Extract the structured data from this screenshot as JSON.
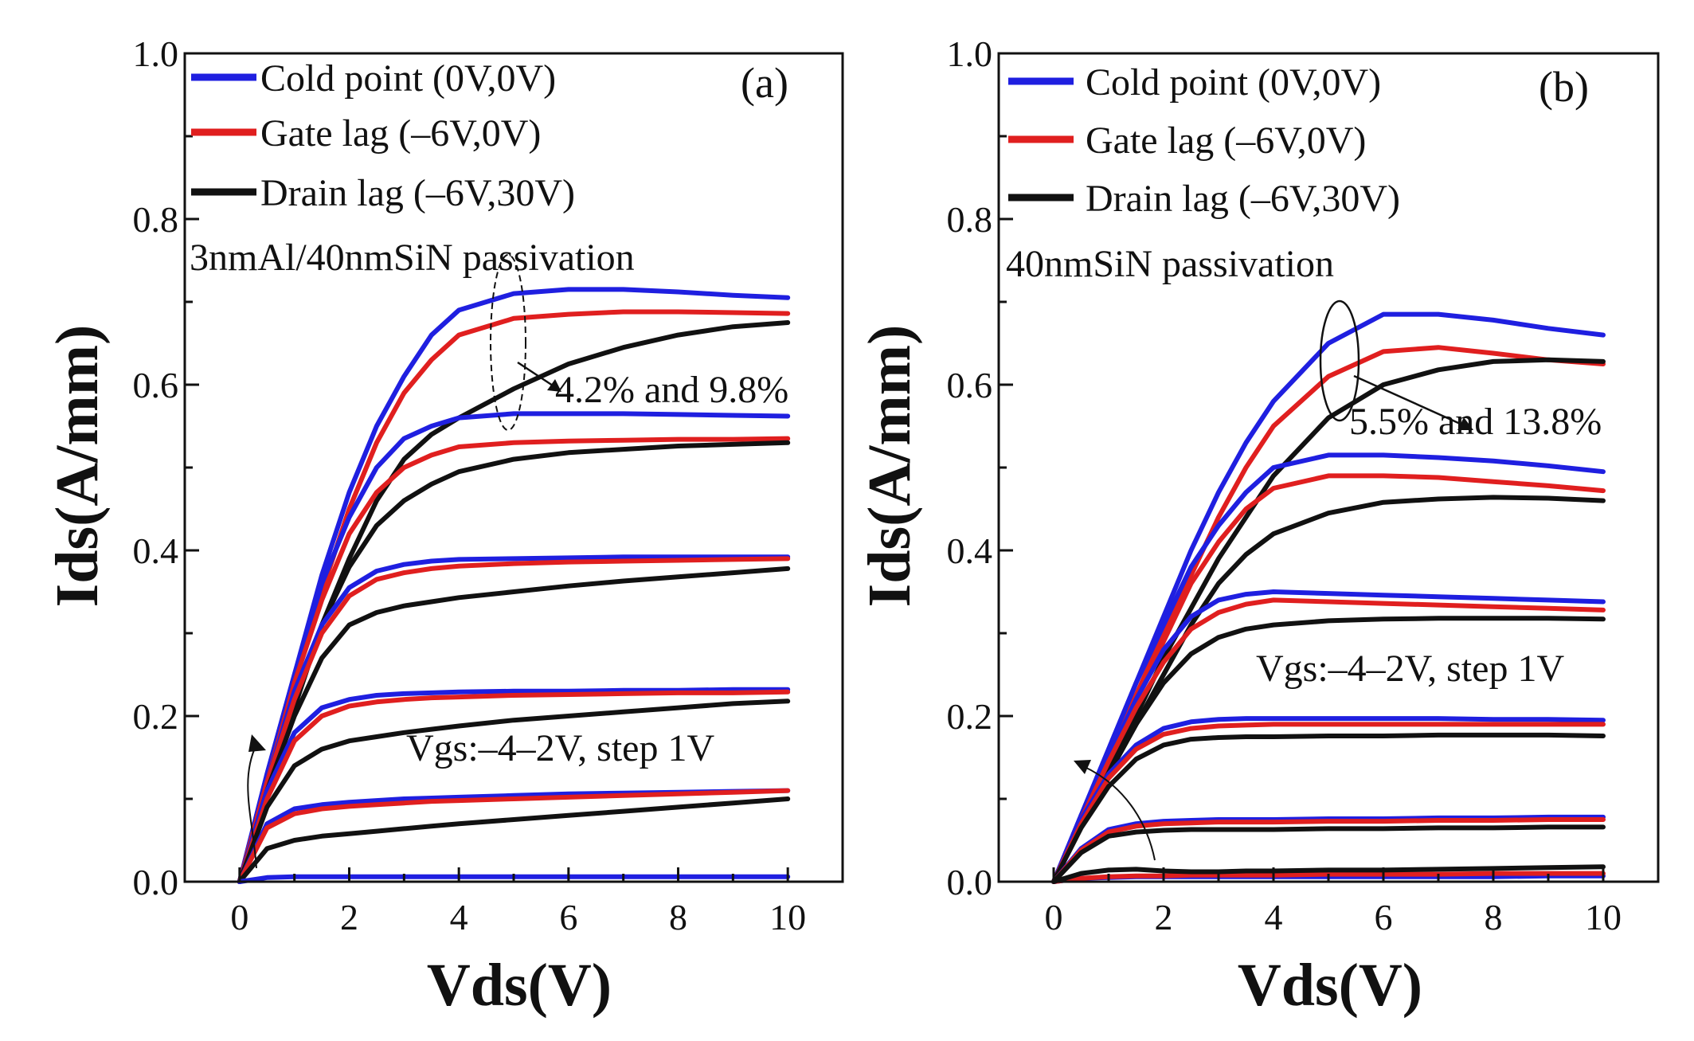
{
  "chart_data": [
    {
      "type": "line",
      "panel_label": "(a)",
      "xlabel": "Vds(V)",
      "ylabel": "Ids(A/mm)",
      "xlim": [
        -1,
        11
      ],
      "ylim": [
        0,
        1.0
      ],
      "x_ticks": [
        "0",
        "2",
        "4",
        "6",
        "8",
        "10"
      ],
      "y_ticks": [
        "0.0",
        "0.2",
        "0.4",
        "0.6",
        "0.8",
        "1.0"
      ],
      "legend": [
        {
          "label": "Cold point (0V,0V)",
          "color": "#1f1fe0"
        },
        {
          "label": "Gate lag (–6V,0V)",
          "color": "#e01f1f"
        },
        {
          "label": "Drain lag (–6V,30V)",
          "color": "#111111"
        }
      ],
      "annotations": {
        "passivation": "3nmAl/40nmSiN passivation",
        "lag": "4.2% and 9.8%",
        "vgs": "Vgs:–4–2V, step 1V"
      },
      "x": [
        0,
        0.5,
        1,
        1.5,
        2,
        2.5,
        3,
        3.5,
        4,
        5,
        6,
        7,
        8,
        9,
        10
      ],
      "series": [
        {
          "name": "Cold point Vgs=2V",
          "legend": 0,
          "values": [
            0,
            0.13,
            0.25,
            0.37,
            0.47,
            0.55,
            0.61,
            0.66,
            0.69,
            0.71,
            0.715,
            0.715,
            0.712,
            0.708,
            0.705
          ]
        },
        {
          "name": "Gate lag Vgs=2V",
          "legend": 1,
          "values": [
            0,
            0.12,
            0.24,
            0.35,
            0.45,
            0.53,
            0.59,
            0.63,
            0.66,
            0.68,
            0.685,
            0.688,
            0.688,
            0.687,
            0.686
          ]
        },
        {
          "name": "Drain lag Vgs=2V",
          "legend": 2,
          "values": [
            0,
            0.11,
            0.21,
            0.31,
            0.39,
            0.46,
            0.51,
            0.54,
            0.56,
            0.595,
            0.625,
            0.645,
            0.66,
            0.67,
            0.675
          ]
        },
        {
          "name": "Cold point Vgs=1V",
          "legend": 0,
          "values": [
            0,
            0.13,
            0.25,
            0.36,
            0.44,
            0.5,
            0.535,
            0.55,
            0.56,
            0.565,
            0.565,
            0.565,
            0.564,
            0.563,
            0.562
          ]
        },
        {
          "name": "Gate lag Vgs=1V",
          "legend": 1,
          "values": [
            0,
            0.12,
            0.24,
            0.34,
            0.42,
            0.47,
            0.5,
            0.515,
            0.525,
            0.53,
            0.532,
            0.533,
            0.534,
            0.534,
            0.535
          ]
        },
        {
          "name": "Drain lag Vgs=1V",
          "legend": 2,
          "values": [
            0,
            0.11,
            0.22,
            0.31,
            0.38,
            0.43,
            0.46,
            0.48,
            0.495,
            0.51,
            0.518,
            0.522,
            0.526,
            0.528,
            0.53
          ]
        },
        {
          "name": "Cold point Vgs=0V",
          "legend": 0,
          "values": [
            0,
            0.12,
            0.23,
            0.31,
            0.355,
            0.375,
            0.383,
            0.387,
            0.389,
            0.39,
            0.391,
            0.392,
            0.392,
            0.392,
            0.392
          ]
        },
        {
          "name": "Gate lag Vgs=0V",
          "legend": 1,
          "values": [
            0,
            0.12,
            0.22,
            0.3,
            0.345,
            0.365,
            0.373,
            0.378,
            0.381,
            0.384,
            0.386,
            0.387,
            0.388,
            0.389,
            0.39
          ]
        },
        {
          "name": "Drain lag Vgs=0V",
          "legend": 2,
          "values": [
            0,
            0.11,
            0.2,
            0.27,
            0.31,
            0.325,
            0.333,
            0.338,
            0.343,
            0.35,
            0.357,
            0.363,
            0.368,
            0.373,
            0.378
          ]
        },
        {
          "name": "Cold point Vgs=-1V",
          "legend": 0,
          "values": [
            0,
            0.11,
            0.18,
            0.21,
            0.22,
            0.225,
            0.227,
            0.228,
            0.229,
            0.23,
            0.23,
            0.231,
            0.231,
            0.232,
            0.232
          ]
        },
        {
          "name": "Gate lag Vgs=-1V",
          "legend": 1,
          "values": [
            0,
            0.1,
            0.17,
            0.2,
            0.212,
            0.217,
            0.22,
            0.222,
            0.223,
            0.225,
            0.226,
            0.227,
            0.228,
            0.228,
            0.229
          ]
        },
        {
          "name": "Drain lag Vgs=-1V",
          "legend": 2,
          "values": [
            0,
            0.09,
            0.14,
            0.16,
            0.17,
            0.175,
            0.18,
            0.184,
            0.188,
            0.195,
            0.2,
            0.205,
            0.21,
            0.215,
            0.218
          ]
        },
        {
          "name": "Cold point Vgs=-2V",
          "legend": 0,
          "values": [
            0,
            0.07,
            0.088,
            0.093,
            0.096,
            0.098,
            0.1,
            0.101,
            0.102,
            0.104,
            0.106,
            0.107,
            0.108,
            0.109,
            0.11
          ]
        },
        {
          "name": "Gate lag Vgs=-2V",
          "legend": 1,
          "values": [
            0,
            0.065,
            0.082,
            0.088,
            0.091,
            0.093,
            0.095,
            0.097,
            0.098,
            0.1,
            0.102,
            0.104,
            0.106,
            0.108,
            0.11
          ]
        },
        {
          "name": "Drain lag Vgs=-2V",
          "legend": 2,
          "values": [
            0,
            0.04,
            0.05,
            0.055,
            0.058,
            0.061,
            0.064,
            0.067,
            0.07,
            0.075,
            0.08,
            0.085,
            0.09,
            0.095,
            0.1
          ]
        },
        {
          "name": "Cold point Vgs=-3V",
          "legend": 0,
          "values": [
            0,
            0.005,
            0.006,
            0.006,
            0.006,
            0.006,
            0.006,
            0.006,
            0.006,
            0.006,
            0.006,
            0.006,
            0.006,
            0.006,
            0.006
          ]
        }
      ]
    },
    {
      "type": "line",
      "panel_label": "(b)",
      "xlabel": "Vds(V)",
      "ylabel": "Ids(A/mm)",
      "xlim": [
        -1,
        11
      ],
      "ylim": [
        0,
        1.0
      ],
      "x_ticks": [
        "0",
        "2",
        "4",
        "6",
        "8",
        "10"
      ],
      "y_ticks": [
        "0.0",
        "0.2",
        "0.4",
        "0.6",
        "0.8",
        "1.0"
      ],
      "legend": [
        {
          "label": "Cold point (0V,0V)",
          "color": "#1f1fe0"
        },
        {
          "label": "Gate lag (–6V,0V)",
          "color": "#e01f1f"
        },
        {
          "label": "Drain lag (–6V,30V)",
          "color": "#111111"
        }
      ],
      "annotations": {
        "passivation": "40nmSiN passivation",
        "lag": "5.5% and 13.8%",
        "vgs": "Vgs:–4–2V, step 1V"
      },
      "x": [
        0,
        0.5,
        1,
        1.5,
        2,
        2.5,
        3,
        3.5,
        4,
        5,
        6,
        7,
        8,
        9,
        10
      ],
      "series": [
        {
          "name": "Cold point Vgs=2V",
          "legend": 0,
          "values": [
            0,
            0.08,
            0.16,
            0.24,
            0.32,
            0.4,
            0.47,
            0.53,
            0.58,
            0.65,
            0.685,
            0.685,
            0.678,
            0.668,
            0.66
          ]
        },
        {
          "name": "Gate lag Vgs=2V",
          "legend": 1,
          "values": [
            0,
            0.075,
            0.15,
            0.225,
            0.3,
            0.37,
            0.44,
            0.5,
            0.55,
            0.61,
            0.64,
            0.645,
            0.638,
            0.63,
            0.625
          ]
        },
        {
          "name": "Drain lag Vgs=2V",
          "legend": 2,
          "values": [
            0,
            0.07,
            0.14,
            0.2,
            0.27,
            0.33,
            0.39,
            0.44,
            0.49,
            0.56,
            0.6,
            0.618,
            0.628,
            0.63,
            0.628
          ]
        },
        {
          "name": "Cold point Vgs=1V",
          "legend": 0,
          "values": [
            0,
            0.08,
            0.16,
            0.24,
            0.31,
            0.38,
            0.43,
            0.47,
            0.5,
            0.515,
            0.515,
            0.512,
            0.508,
            0.502,
            0.495
          ]
        },
        {
          "name": "Gate lag Vgs=1V",
          "legend": 1,
          "values": [
            0,
            0.075,
            0.15,
            0.22,
            0.29,
            0.36,
            0.41,
            0.45,
            0.475,
            0.49,
            0.49,
            0.488,
            0.483,
            0.478,
            0.472
          ]
        },
        {
          "name": "Drain lag Vgs=1V",
          "legend": 2,
          "values": [
            0,
            0.07,
            0.13,
            0.19,
            0.25,
            0.31,
            0.36,
            0.395,
            0.42,
            0.445,
            0.458,
            0.462,
            0.464,
            0.463,
            0.46
          ]
        },
        {
          "name": "Cold point Vgs=0V",
          "legend": 0,
          "values": [
            0,
            0.08,
            0.15,
            0.22,
            0.28,
            0.32,
            0.34,
            0.347,
            0.35,
            0.348,
            0.346,
            0.344,
            0.342,
            0.34,
            0.338
          ]
        },
        {
          "name": "Gate lag Vgs=0V",
          "legend": 1,
          "values": [
            0,
            0.075,
            0.145,
            0.21,
            0.265,
            0.305,
            0.325,
            0.335,
            0.34,
            0.338,
            0.336,
            0.334,
            0.332,
            0.33,
            0.328
          ]
        },
        {
          "name": "Drain lag Vgs=0V",
          "legend": 2,
          "values": [
            0,
            0.07,
            0.13,
            0.19,
            0.24,
            0.275,
            0.295,
            0.305,
            0.31,
            0.315,
            0.317,
            0.318,
            0.318,
            0.318,
            0.317
          ]
        },
        {
          "name": "Cold point Vgs=-1V",
          "legend": 0,
          "values": [
            0,
            0.075,
            0.13,
            0.165,
            0.185,
            0.193,
            0.196,
            0.197,
            0.197,
            0.197,
            0.197,
            0.197,
            0.196,
            0.196,
            0.195
          ]
        },
        {
          "name": "Gate lag Vgs=-1V",
          "legend": 1,
          "values": [
            0,
            0.07,
            0.125,
            0.16,
            0.178,
            0.185,
            0.188,
            0.189,
            0.19,
            0.19,
            0.19,
            0.19,
            0.19,
            0.19,
            0.19
          ]
        },
        {
          "name": "Drain lag Vgs=-1V",
          "legend": 2,
          "values": [
            0,
            0.065,
            0.115,
            0.148,
            0.165,
            0.172,
            0.174,
            0.175,
            0.175,
            0.176,
            0.176,
            0.177,
            0.177,
            0.177,
            0.176
          ]
        },
        {
          "name": "Cold point Vgs=-2V",
          "legend": 0,
          "values": [
            0,
            0.04,
            0.063,
            0.07,
            0.073,
            0.074,
            0.075,
            0.075,
            0.075,
            0.076,
            0.076,
            0.077,
            0.077,
            0.078,
            0.078
          ]
        },
        {
          "name": "Gate lag Vgs=-2V",
          "legend": 1,
          "values": [
            0,
            0.038,
            0.06,
            0.067,
            0.07,
            0.071,
            0.072,
            0.072,
            0.072,
            0.073,
            0.073,
            0.074,
            0.074,
            0.075,
            0.075
          ]
        },
        {
          "name": "Drain lag Vgs=-2V",
          "legend": 2,
          "values": [
            0,
            0.035,
            0.055,
            0.06,
            0.062,
            0.063,
            0.063,
            0.063,
            0.063,
            0.064,
            0.064,
            0.065,
            0.065,
            0.066,
            0.066
          ]
        },
        {
          "name": "Cold point Vgs=-3V",
          "legend": 0,
          "values": [
            0,
            0.004,
            0.005,
            0.006,
            0.006,
            0.006,
            0.006,
            0.006,
            0.006,
            0.006,
            0.006,
            0.006,
            0.006,
            0.007,
            0.007
          ]
        },
        {
          "name": "Gate lag Vgs=-3V",
          "legend": 1,
          "values": [
            0,
            0.004,
            0.006,
            0.007,
            0.007,
            0.008,
            0.008,
            0.008,
            0.008,
            0.009,
            0.009,
            0.009,
            0.01,
            0.01,
            0.01
          ]
        },
        {
          "name": "Drain lag Vgs=-3V",
          "legend": 2,
          "values": [
            0,
            0.01,
            0.014,
            0.015,
            0.013,
            0.012,
            0.012,
            0.013,
            0.013,
            0.014,
            0.014,
            0.015,
            0.016,
            0.017,
            0.018
          ]
        }
      ]
    }
  ]
}
